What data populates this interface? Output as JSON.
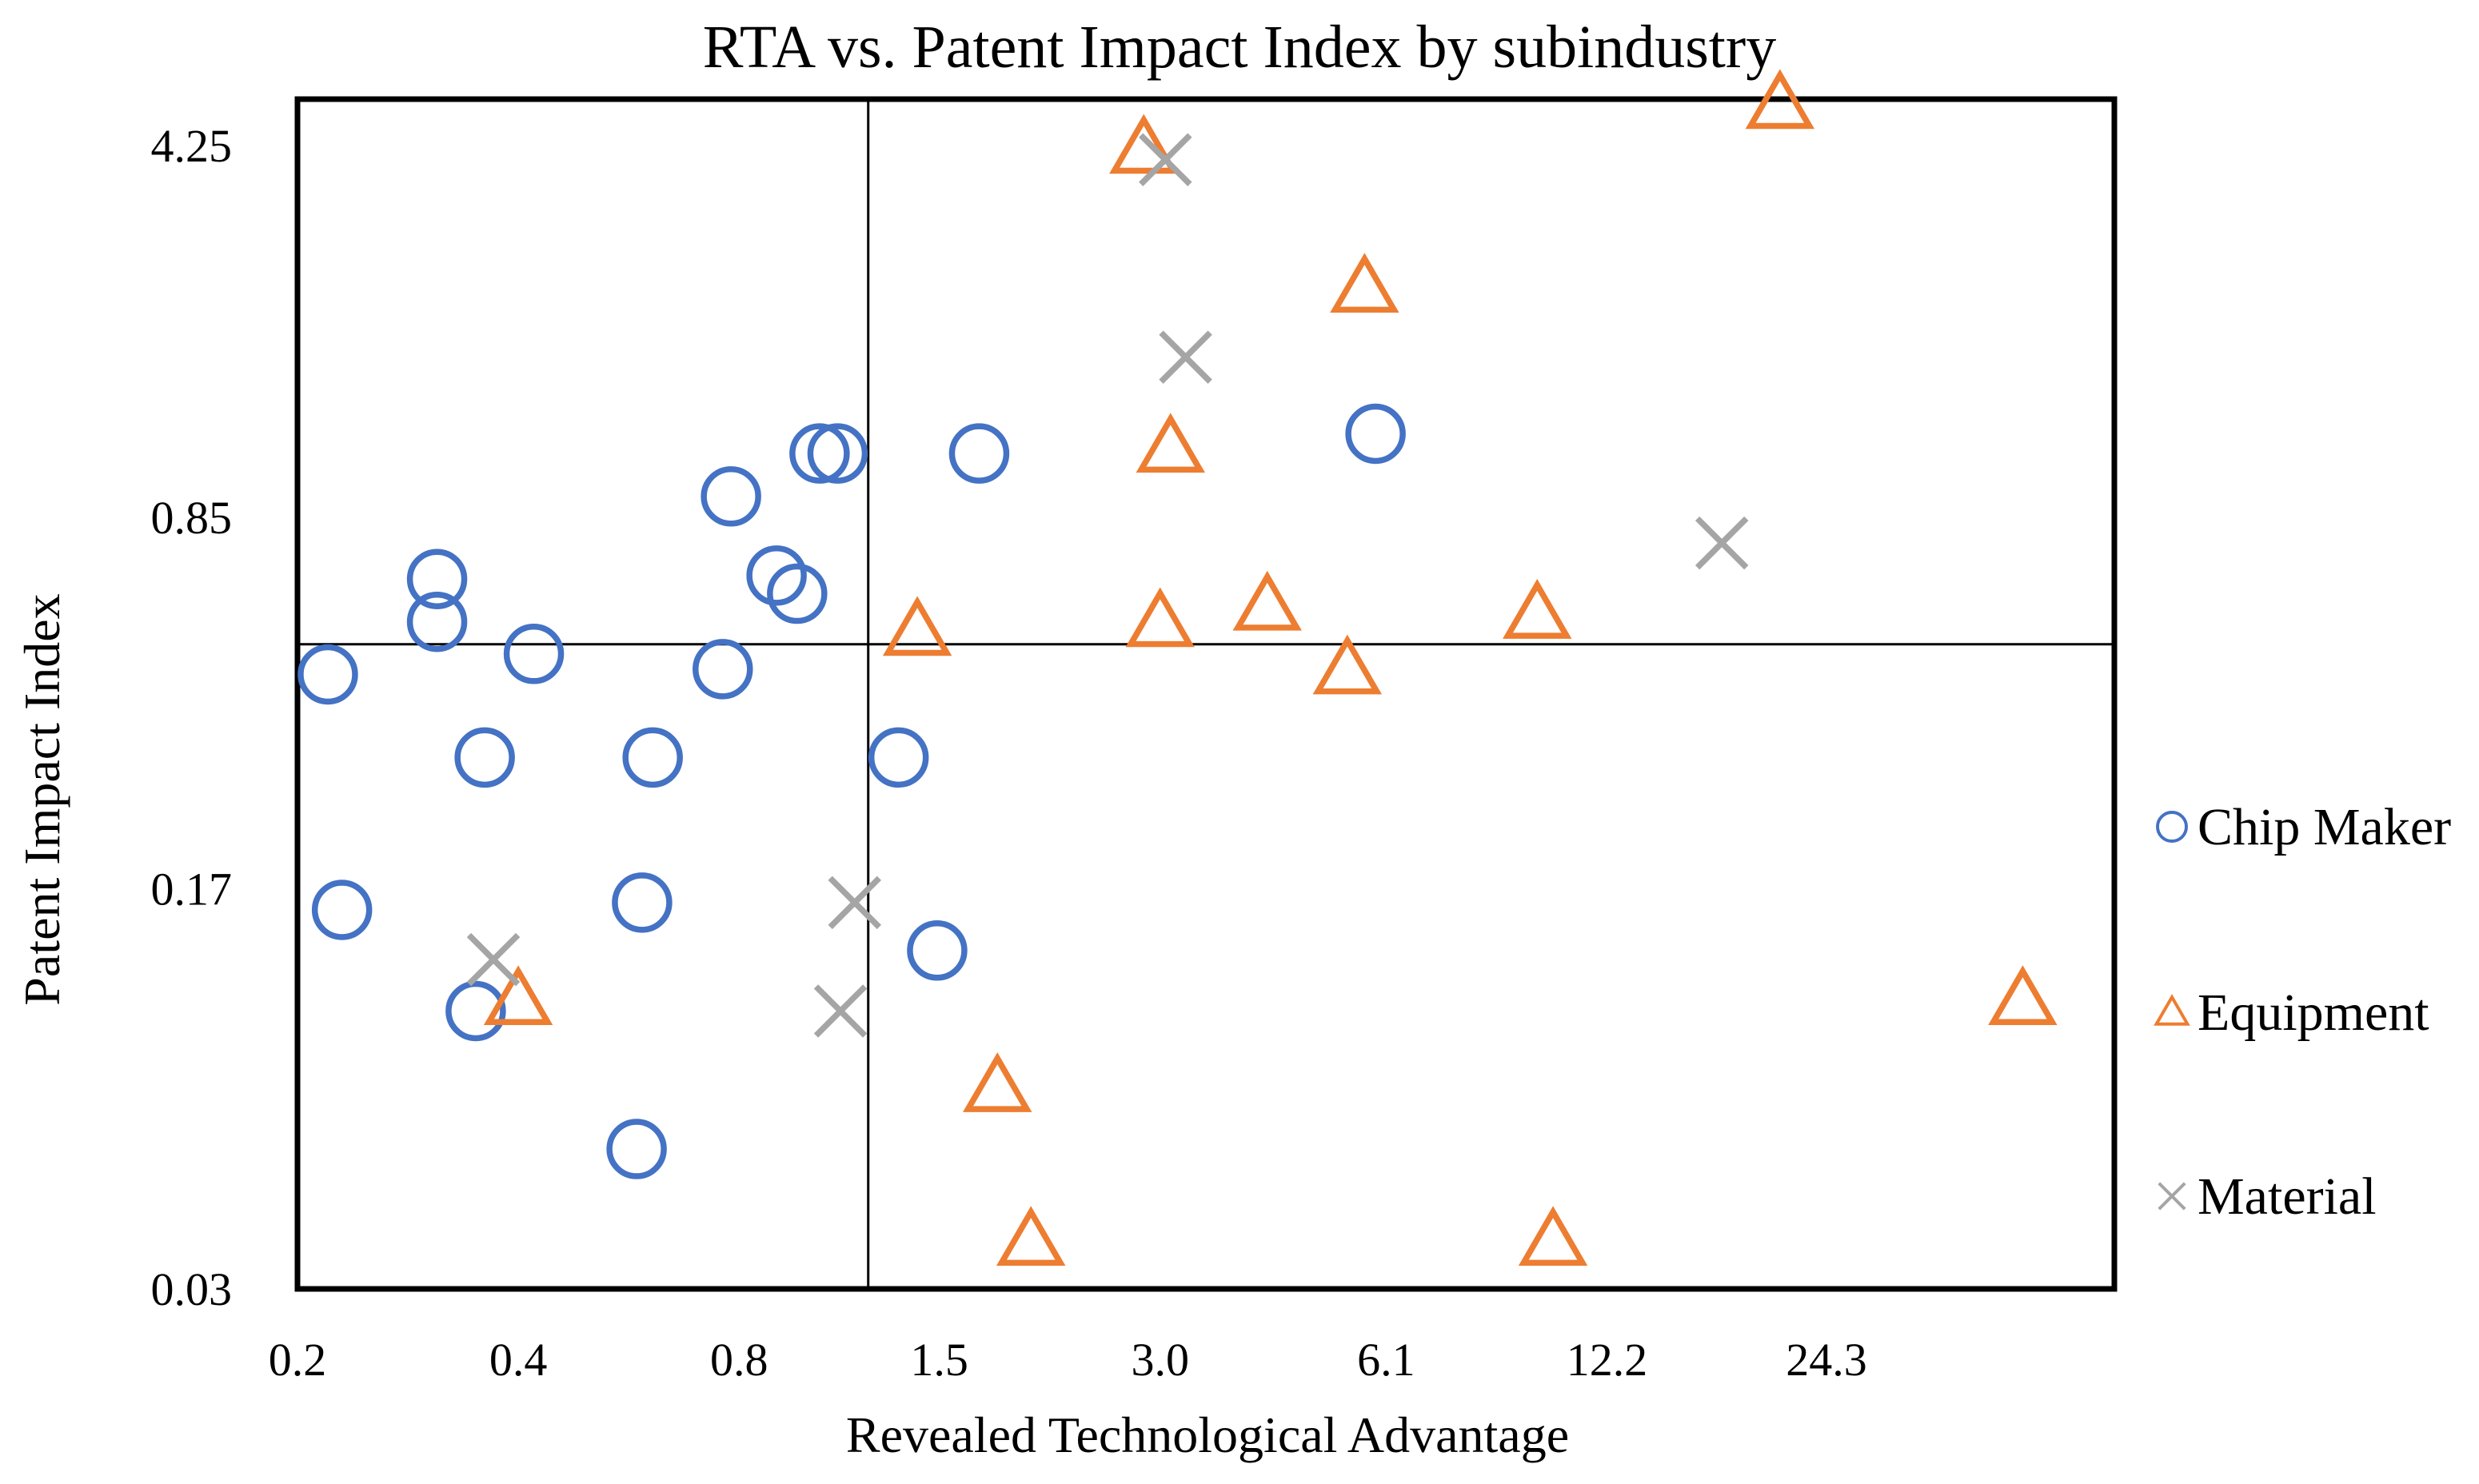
{
  "chart_data": {
    "type": "scatter",
    "title": "RTA vs. Patent Impact Index by subindustry",
    "xlabel": "Revealed Technological Advantage",
    "ylabel": "Patent Impact Index",
    "x_scale": "log2",
    "y_scale": "log",
    "xlim": [
      0.2,
      60
    ],
    "ylim": [
      0.03,
      5.2
    ],
    "x_ticks": [
      "0.2",
      "0.4",
      "0.8",
      "1.5",
      "3.0",
      "6.1",
      "12.2",
      "24.3"
    ],
    "x_tick_values": [
      0.2,
      0.4,
      0.8,
      1.5,
      3.0,
      6.1,
      12.2,
      24.3
    ],
    "y_ticks": [
      "0.03",
      "0.17",
      "0.85",
      "4.25"
    ],
    "y_tick_values": [
      0.03,
      0.17,
      0.85,
      4.25
    ],
    "reference_lines": {
      "x": 1.2,
      "y": 0.49
    },
    "legend_position": "right",
    "series": [
      {
        "name": "Chip Maker",
        "marker": "circle",
        "color": "#4472C4",
        "points": [
          [
            0.22,
            0.43
          ],
          [
            0.23,
            0.155
          ],
          [
            0.31,
            0.65
          ],
          [
            0.31,
            0.54
          ],
          [
            0.42,
            0.47
          ],
          [
            0.36,
            0.3
          ],
          [
            0.35,
            0.1
          ],
          [
            0.59,
            0.16
          ],
          [
            0.61,
            0.3
          ],
          [
            0.58,
            0.055
          ],
          [
            0.76,
            0.44
          ],
          [
            0.78,
            0.93
          ],
          [
            0.9,
            0.66
          ],
          [
            0.96,
            0.61
          ],
          [
            1.03,
            1.12
          ],
          [
            1.09,
            1.12
          ],
          [
            1.32,
            0.3
          ],
          [
            1.49,
            0.13
          ],
          [
            1.7,
            1.12
          ],
          [
            5.9,
            1.22
          ]
        ]
      },
      {
        "name": "Equipment",
        "marker": "triangle",
        "color": "#ED7D31",
        "points": [
          [
            0.4,
            0.105
          ],
          [
            1.4,
            0.52
          ],
          [
            1.8,
            0.072
          ],
          [
            2.0,
            0.037
          ],
          [
            2.85,
            4.2
          ],
          [
            3.0,
            0.54
          ],
          [
            3.1,
            1.15
          ],
          [
            4.2,
            0.58
          ],
          [
            5.4,
            0.44
          ],
          [
            5.7,
            2.3
          ],
          [
            9.8,
            0.56
          ],
          [
            10.3,
            0.037
          ],
          [
            21.0,
            5.1
          ],
          [
            45.0,
            0.105
          ]
        ]
      },
      {
        "name": "Material",
        "marker": "x",
        "color": "#A5A5A5",
        "points": [
          [
            0.37,
            0.125
          ],
          [
            1.1,
            0.1
          ],
          [
            1.15,
            0.16
          ],
          [
            3.05,
            4.0
          ],
          [
            3.25,
            1.7
          ],
          [
            17.5,
            0.76
          ]
        ]
      }
    ]
  }
}
